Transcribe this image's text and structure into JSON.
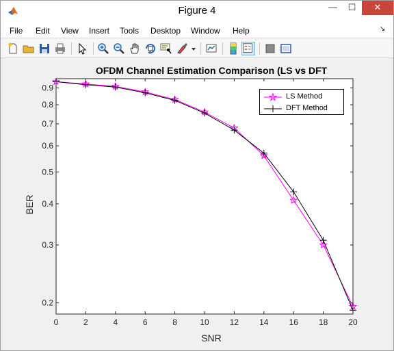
{
  "window": {
    "title": "Figure 4",
    "min_label": "—",
    "max_label": "☐",
    "close_label": "✕"
  },
  "menu": [
    "File",
    "Edit",
    "View",
    "Insert",
    "Tools",
    "Desktop",
    "Window",
    "Help"
  ],
  "menu_overflow_label": "↘",
  "toolbar_icons": [
    "new-figure-icon",
    "open-file-icon",
    "save-icon",
    "print-icon",
    "pointer-icon",
    "zoom-in-icon",
    "zoom-out-icon",
    "pan-icon",
    "rotate-3d-icon",
    "data-cursor-icon",
    "brush-icon",
    "link-plot-icon",
    "colorbar-icon",
    "legend-icon",
    "hide-plot-tools-icon",
    "show-plot-tools-icon"
  ],
  "chart_data": {
    "type": "line",
    "title": "OFDM Channel Estimation Comparison (LS vs DFT",
    "xlabel": "SNR",
    "ylabel": "BER",
    "xlim": [
      0,
      20
    ],
    "ylim": [
      0.185,
      0.96
    ],
    "yscale": "log",
    "x": [
      0,
      2,
      4,
      6,
      8,
      10,
      12,
      14,
      16,
      18,
      20
    ],
    "x_ticks": [
      0,
      2,
      4,
      6,
      8,
      10,
      12,
      14,
      16,
      18,
      20
    ],
    "y_ticks": [
      0.2,
      0.3,
      0.4,
      0.5,
      0.6,
      0.7,
      0.8,
      0.9
    ],
    "y_tick_labels": [
      "0.2",
      "0.3",
      "0.4",
      "0.5",
      "0.6",
      "0.7",
      "0.8",
      "0.9"
    ],
    "legend_position": "top-right",
    "series": [
      {
        "name": "LS Method",
        "color": "#ff00ff",
        "marker": "star",
        "values": [
          0.94,
          0.925,
          0.91,
          0.875,
          0.83,
          0.76,
          0.68,
          0.56,
          0.41,
          0.3,
          0.195
        ]
      },
      {
        "name": "DFT Method",
        "color": "#000000",
        "marker": "plus",
        "values": [
          0.94,
          0.92,
          0.905,
          0.87,
          0.825,
          0.755,
          0.67,
          0.57,
          0.435,
          0.31,
          0.19
        ]
      }
    ]
  }
}
